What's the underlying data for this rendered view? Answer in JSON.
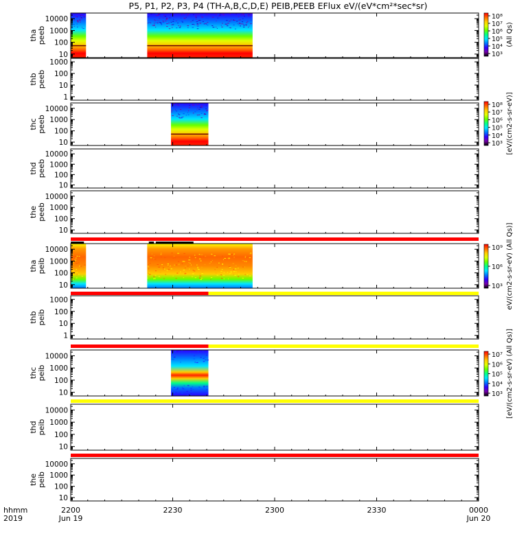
{
  "title": "P5, P1, P2, P3, P4 (TH-A,B,C,D,E) PEIB,PEEB EFlux eV/(eV*cm²*sec*sr)",
  "colors": {
    "red": "#ff0000",
    "yellow": "#ffff00",
    "black": "#000000",
    "gap": "#ffffff",
    "cmap": [
      "#7700aa",
      "#2a00ff",
      "#0077ff",
      "#00e5ff",
      "#00ff88",
      "#66ff00",
      "#e0ff00",
      "#ffcc00",
      "#ff6600",
      "#ff0000"
    ]
  },
  "chart_data": {
    "type": "heatmap",
    "x_axis": {
      "ticks": [
        "2200",
        "2230",
        "2300",
        "2330",
        "0000"
      ],
      "minutes": [
        0,
        30,
        60,
        90,
        120
      ],
      "range_minutes": [
        0,
        120
      ],
      "date_labels": {
        "start": "Jun 19",
        "end": "Jun 20"
      },
      "row_label_time": "hhmm",
      "row_label_year": "2019"
    },
    "panels": [
      {
        "probe": "tha",
        "product": "peeb",
        "label": [
          "tha",
          "peeb"
        ],
        "yticks": [
          "10000",
          "1000",
          "100",
          "10"
        ],
        "yrange": [
          5,
          30000
        ],
        "log": true,
        "spans": [
          [
            0,
            4.5
          ],
          [
            22.5,
            53.5
          ]
        ],
        "style": "electron",
        "flag": null,
        "colorbar": {
          "ticks": [
            "10⁸",
            "10⁷",
            "10⁶",
            "10⁵",
            "10⁴",
            "10³"
          ],
          "label": "(All Qs)"
        }
      },
      {
        "probe": "thb",
        "product": "peeb",
        "label": [
          "thb",
          "peeb"
        ],
        "yticks": [
          "1000",
          "100",
          "10",
          "1"
        ],
        "yrange": [
          0.5,
          2000
        ],
        "log": true,
        "spans": [],
        "style": "none",
        "flag": null,
        "colorbar": null
      },
      {
        "probe": "thc",
        "product": "peeb",
        "label": [
          "thc",
          "peeb"
        ],
        "yticks": [
          "10000",
          "1000",
          "100",
          "10"
        ],
        "yrange": [
          5,
          30000
        ],
        "log": true,
        "spans": [
          [
            29.5,
            40.5
          ]
        ],
        "style": "electron",
        "flag": null,
        "colorbar": {
          "ticks": [
            "10⁸",
            "10⁷",
            "10⁶",
            "10⁵",
            "10⁴",
            "10³"
          ],
          "label": "[eV/(cm2-s-sr-eV)]"
        }
      },
      {
        "probe": "thd",
        "product": "peeb",
        "label": [
          "thd",
          "peeb"
        ],
        "yticks": [
          "10000",
          "1000",
          "100",
          "10"
        ],
        "yrange": [
          5,
          30000
        ],
        "log": true,
        "spans": [],
        "style": "none",
        "flag": null,
        "colorbar": null
      },
      {
        "probe": "the",
        "product": "peeb",
        "label": [
          "the",
          "peeb"
        ],
        "yticks": [
          "10000",
          "1000",
          "100",
          "10"
        ],
        "yrange": [
          5,
          30000
        ],
        "log": true,
        "spans": [],
        "style": "none",
        "flag": [
          [
            0,
            120,
            "red"
          ]
        ],
        "colorbar": null
      },
      {
        "probe": "tha",
        "product": "peib",
        "label": [
          "tha",
          "peib"
        ],
        "yticks": [
          "10000",
          "1000",
          "100",
          "10"
        ],
        "yrange": [
          5,
          30000
        ],
        "log": true,
        "spans": [
          [
            0,
            4.5
          ],
          [
            22.5,
            53.5
          ]
        ],
        "style": "ion",
        "flag": [
          [
            0,
            40.5,
            "red"
          ],
          [
            40.5,
            120,
            "yellow"
          ]
        ],
        "colorbar": {
          "ticks": [
            "10⁹",
            "10⁶",
            "10³"
          ],
          "label": "eV/(cm2-s-sr-eV) (All Qs)]"
        }
      },
      {
        "probe": "thb",
        "product": "peib",
        "label": [
          "thb",
          "peib"
        ],
        "yticks": [
          "1000",
          "100",
          "10",
          "1"
        ],
        "yrange": [
          0.5,
          2000
        ],
        "log": true,
        "spans": [],
        "style": "none",
        "flag": [
          [
            0,
            40.5,
            "red"
          ],
          [
            40.5,
            120,
            "yellow"
          ]
        ],
        "colorbar": null
      },
      {
        "probe": "thc",
        "product": "peib",
        "label": [
          "thc",
          "peib"
        ],
        "yticks": [
          "10000",
          "1000",
          "100",
          "10"
        ],
        "yrange": [
          5,
          30000
        ],
        "log": true,
        "spans": [
          [
            29.5,
            40.5
          ]
        ],
        "style": "ionband",
        "flag": [
          [
            0,
            120,
            "yellow"
          ]
        ],
        "colorbar": {
          "ticks": [
            "10⁷",
            "10⁶",
            "10⁵",
            "10⁴",
            "10³"
          ],
          "label": "[eV/(cm2-s-sr-eV) (All Qs)]"
        }
      },
      {
        "probe": "thd",
        "product": "peib",
        "label": [
          "thd",
          "peib"
        ],
        "yticks": [
          "10000",
          "1000",
          "100",
          "10"
        ],
        "yrange": [
          5,
          30000
        ],
        "log": true,
        "spans": [],
        "style": "none",
        "flag": [
          [
            0,
            120,
            "red"
          ]
        ],
        "colorbar": null
      },
      {
        "probe": "the",
        "product": "peib",
        "label": [
          "the",
          "peib"
        ],
        "yticks": [
          "10000",
          "1000",
          "100",
          "10"
        ],
        "yrange": [
          5,
          30000
        ],
        "log": true,
        "spans": [],
        "style": "none",
        "flag": null,
        "colorbar": null
      }
    ]
  }
}
